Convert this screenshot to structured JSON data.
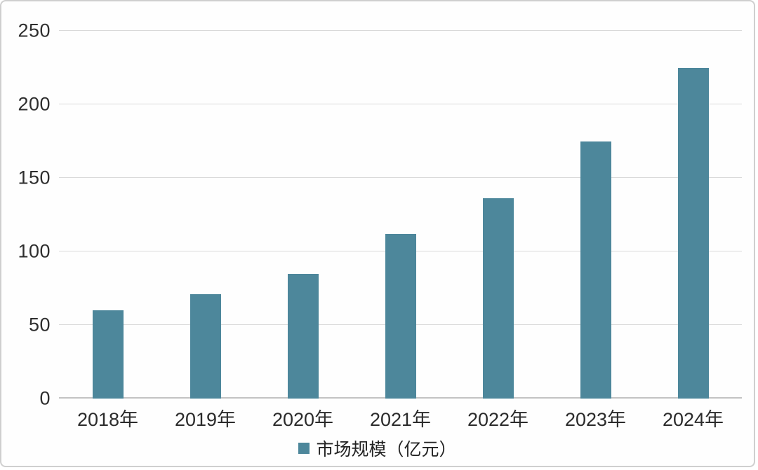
{
  "frame": {
    "background": "#fefefe",
    "border_color": "#cfcfcf"
  },
  "chart_data": {
    "type": "bar",
    "title": "",
    "categories": [
      "2018年",
      "2019年",
      "2020年",
      "2021年",
      "2022年",
      "2023年",
      "2024年"
    ],
    "series": [
      {
        "name": "市场规模（亿元）",
        "values": [
          60,
          71,
          85,
          112,
          136,
          175,
          225
        ]
      }
    ],
    "xlabel": "",
    "ylabel": "",
    "ylim": [
      0,
      250
    ],
    "yticks": [
      0,
      50,
      100,
      150,
      200,
      250
    ],
    "grid": "horizontal",
    "legend_position": "bottom",
    "bar_color": "#4d879b",
    "gridline_color": "#d9d9d9",
    "axis_text_color": "#2e2e2e"
  },
  "legend": {
    "label": "市场规模（亿元）"
  }
}
